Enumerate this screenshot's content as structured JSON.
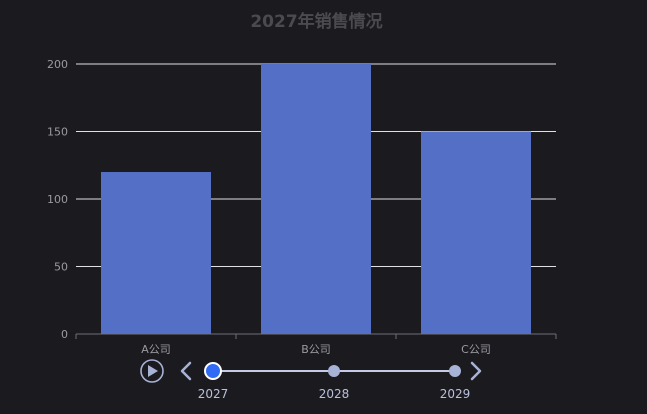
{
  "chart_data": {
    "type": "bar",
    "title": "2027年销售情况",
    "categories": [
      "A公司",
      "B公司",
      "C公司"
    ],
    "values": [
      120,
      200,
      150
    ],
    "ylim": [
      0,
      200
    ],
    "yticks": [
      0,
      50,
      100,
      150,
      200
    ],
    "grid": true,
    "xlabel": "",
    "ylabel": ""
  },
  "timeline": {
    "years": [
      "2027",
      "2028",
      "2029"
    ],
    "current_index": 0,
    "play_icon": "play-icon",
    "prev_icon": "chevron-left-icon",
    "next_icon": "chevron-right-icon"
  },
  "colors": {
    "background": "#1b1a1f",
    "bar": "#5470c6",
    "grid": "#e0e0e6",
    "axis": "#6e7079",
    "timeline_line": "#c5cbe6",
    "timeline_dot": "#a7b3d6",
    "timeline_active": "#316bf3"
  }
}
